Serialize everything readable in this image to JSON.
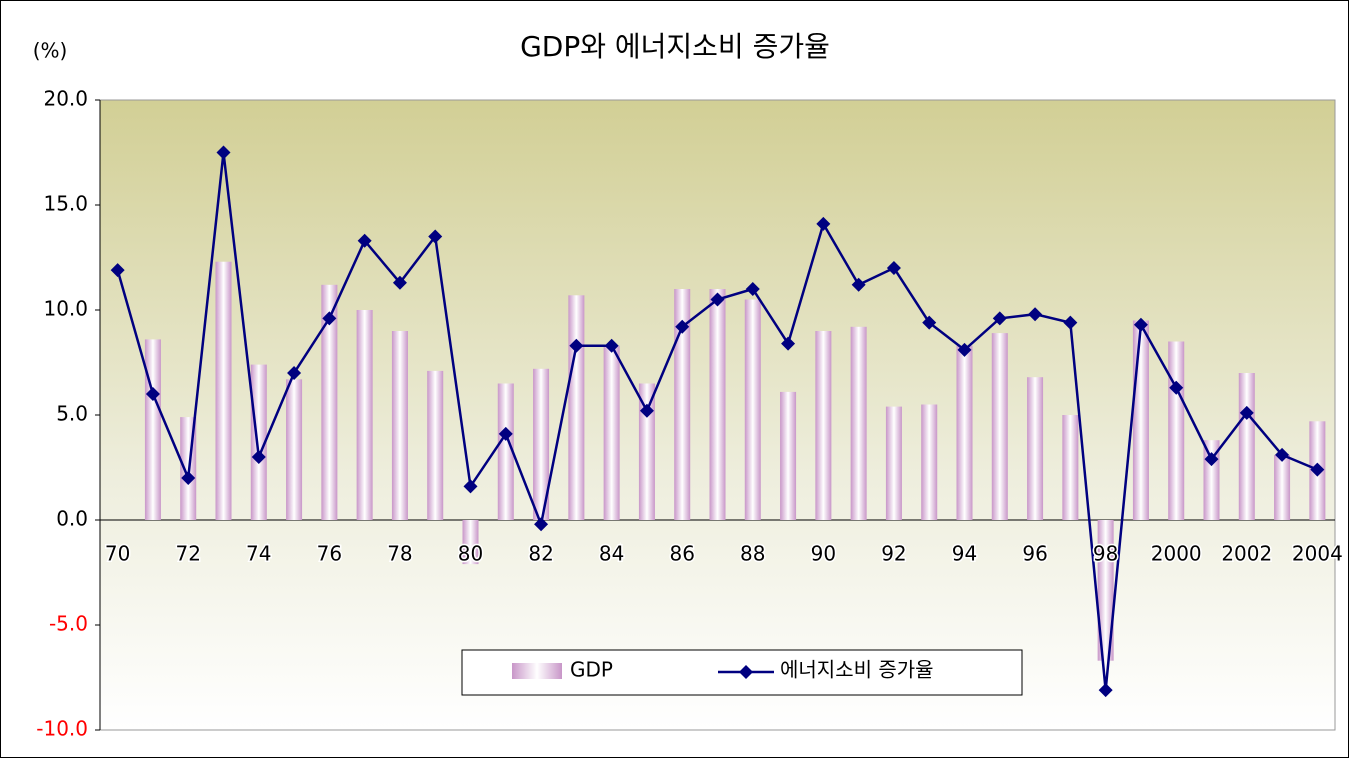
{
  "chart_data": {
    "type": "bar_line",
    "title": "GDP와  에너지소비 증가율",
    "y_label": "(%)",
    "categories": [
      "70",
      null,
      "72",
      null,
      "74",
      null,
      "76",
      null,
      "78",
      null,
      "80",
      null,
      "82",
      null,
      "84",
      null,
      "86",
      null,
      "88",
      null,
      "90",
      null,
      "92",
      null,
      "94",
      null,
      "96",
      null,
      "98",
      null,
      "2000",
      null,
      "2002",
      null,
      "2004"
    ],
    "series": [
      {
        "name": "GDP",
        "type": "bar",
        "color": "#c896c8",
        "values": [
          null,
          8.6,
          4.9,
          12.3,
          7.4,
          6.7,
          11.2,
          10.0,
          9.0,
          7.1,
          -2.1,
          6.5,
          7.2,
          10.7,
          8.3,
          6.5,
          11.0,
          11.0,
          10.5,
          6.1,
          9.0,
          9.2,
          5.4,
          5.5,
          8.3,
          8.9,
          6.8,
          5.0,
          -6.7,
          9.5,
          8.5,
          3.8,
          7.0,
          3.1,
          4.7
        ]
      },
      {
        "name": "에너지소비 증가율",
        "type": "line",
        "color": "#000080",
        "values": [
          11.9,
          6.0,
          2.0,
          17.5,
          3.0,
          7.0,
          9.6,
          13.3,
          11.3,
          13.5,
          1.6,
          4.1,
          -0.2,
          8.3,
          8.3,
          5.2,
          9.2,
          10.5,
          11.0,
          8.4,
          14.1,
          11.2,
          12.0,
          9.4,
          8.1,
          9.6,
          9.8,
          9.4,
          -8.1,
          9.3,
          6.3,
          2.9,
          5.1,
          3.1,
          2.4
        ]
      }
    ],
    "ylim": [
      -10,
      20
    ],
    "yticks": [
      {
        "value": 20,
        "label": "20.0"
      },
      {
        "value": 15,
        "label": "15.0"
      },
      {
        "value": 10,
        "label": "10.0"
      },
      {
        "value": 5,
        "label": "5.0"
      },
      {
        "value": 0,
        "label": "0.0"
      },
      {
        "value": -5,
        "label": "-5.0"
      },
      {
        "value": -10,
        "label": "-10.0"
      }
    ],
    "negative_tick_color": "#ff0000",
    "legend": "bottom"
  }
}
